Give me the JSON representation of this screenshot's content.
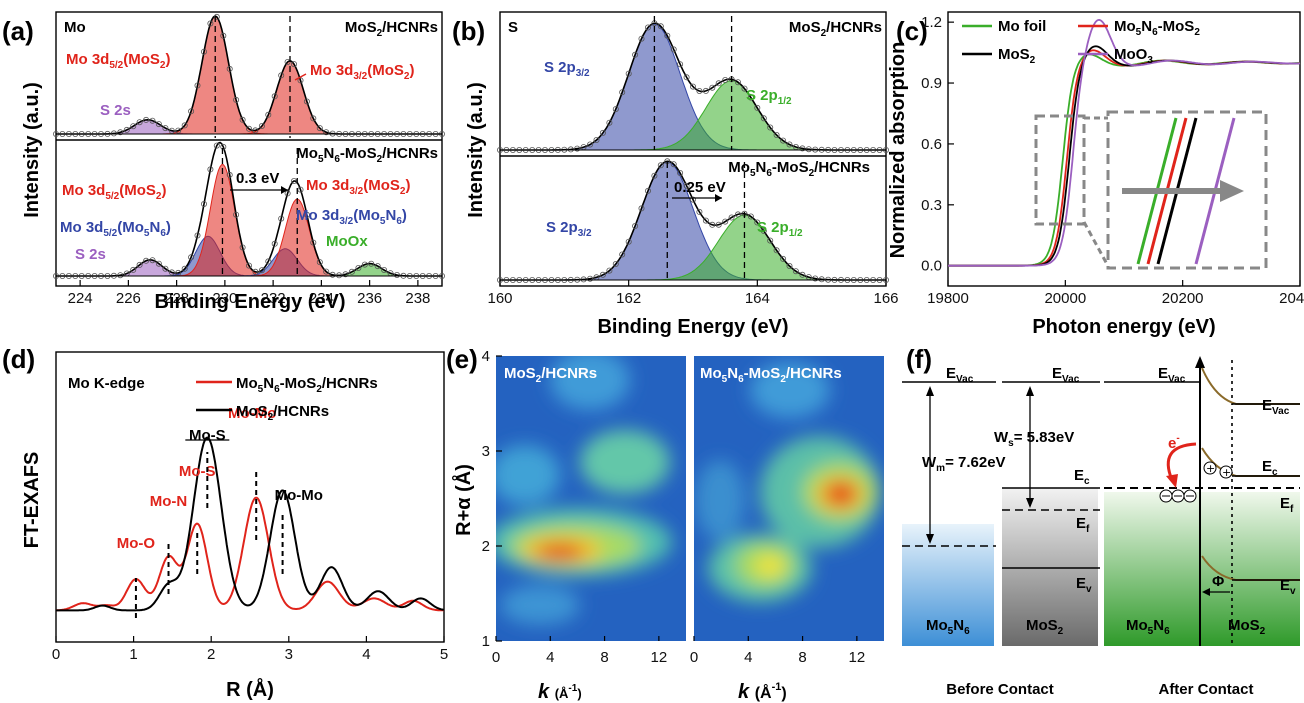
{
  "panel_labels": [
    "(a)",
    "(b)",
    "(c)",
    "(d)",
    "(e)",
    "(f)"
  ],
  "colors": {
    "red": "#e0241b",
    "blue": "#3346a6",
    "green": "#3aae2a",
    "purple": "#9b5fc0",
    "black": "#000000",
    "gray": "#888888"
  },
  "chart_data": [
    {
      "id": "a",
      "type": "line",
      "element_label": "Mo",
      "xlabel": "Binding Energy (eV)",
      "ylabel": "Intensity (a.u.)",
      "xlim": [
        223,
        239
      ],
      "xticks": [
        224,
        226,
        228,
        230,
        232,
        234,
        236,
        238
      ],
      "top": {
        "sample": "MoS2/HCNRs",
        "peaks": [
          {
            "label": "S 2s",
            "center": 226.8,
            "color": "#9b5fc0"
          },
          {
            "label": "Mo 3d5/2(MoS2)",
            "center": 229.6,
            "color": "#e0241b"
          },
          {
            "label": "Mo 3d3/2(MoS2)",
            "center": 232.7,
            "color": "#e0241b"
          }
        ]
      },
      "bottom": {
        "sample": "Mo5N6-MoS2/HCNRs",
        "shift": "0.3 eV",
        "peaks": [
          {
            "label": "S 2s",
            "center": 226.9,
            "color": "#9b5fc0"
          },
          {
            "label": "Mo 3d5/2(Mo5N6)",
            "center": 229.3,
            "color": "#3346a6"
          },
          {
            "label": "Mo 3d5/2(MoS2)",
            "center": 229.9,
            "color": "#e0241b"
          },
          {
            "label": "Mo 3d3/2(Mo5N6)",
            "center": 232.5,
            "color": "#3346a6"
          },
          {
            "label": "Mo 3d3/2(MoS2)",
            "center": 233.0,
            "color": "#e0241b"
          },
          {
            "label": "MoOx",
            "center": 236.0,
            "color": "#3aae2a"
          }
        ]
      }
    },
    {
      "id": "b",
      "type": "line",
      "element_label": "S",
      "xlabel": "Binding Energy (eV)",
      "ylabel": "Intensity (a.u.)",
      "xlim": [
        160,
        166
      ],
      "xticks": [
        160,
        162,
        164,
        166
      ],
      "top": {
        "sample": "MoS2/HCNRs",
        "peaks": [
          {
            "label": "S 2p3/2",
            "center": 162.4,
            "color": "#3346a6"
          },
          {
            "label": "S 2p1/2",
            "center": 163.6,
            "color": "#3aae2a"
          }
        ]
      },
      "bottom": {
        "sample": "Mo5N6-MoS2/HCNRs",
        "shift": "0.25 eV",
        "peaks": [
          {
            "label": "S 2p3/2",
            "center": 162.6,
            "color": "#3346a6"
          },
          {
            "label": "S 2p1/2",
            "center": 163.8,
            "color": "#3aae2a"
          }
        ]
      }
    },
    {
      "id": "c",
      "type": "line",
      "xlabel": "Photon energy (eV)",
      "ylabel": "Normalized absorption",
      "xlim": [
        19800,
        20400
      ],
      "ylim": [
        -0.1,
        1.25
      ],
      "xticks": [
        19800,
        20000,
        20200,
        20400
      ],
      "yticks": [
        0.0,
        0.3,
        0.6,
        0.9,
        1.2
      ],
      "series": [
        {
          "name": "Mo foil",
          "color": "#3aae2a",
          "edge": 19995
        },
        {
          "name": "Mo5N6-MoS2",
          "color": "#e0241b",
          "edge": 20002
        },
        {
          "name": "MoS2",
          "color": "#000000",
          "edge": 20006
        },
        {
          "name": "MoO3",
          "color": "#9b5fc0",
          "edge": 20012
        }
      ]
    },
    {
      "id": "d",
      "type": "line",
      "edge_label": "Mo K-edge",
      "xlabel": "R (Å)",
      "ylabel": "FT-EXAFS",
      "xlim": [
        0,
        5
      ],
      "xticks": [
        0,
        1,
        2,
        3,
        4,
        5
      ],
      "series": [
        {
          "name": "Mo5N6-MoS2/HCNRs",
          "color": "#e0241b"
        },
        {
          "name": "MoS2/HCNRs",
          "color": "#000000"
        }
      ],
      "annotations": [
        {
          "text": "Mo-O",
          "x": 1.03,
          "color": "#e0241b"
        },
        {
          "text": "Mo-N",
          "x": 1.45,
          "color": "#e0241b"
        },
        {
          "text": "Mo-S",
          "x": 1.82,
          "color": "#e0241b"
        },
        {
          "text": "Mo-S",
          "x": 1.95,
          "color": "#000000"
        },
        {
          "text": "Mo-Mo",
          "x": 2.58,
          "color": "#e0241b"
        },
        {
          "text": "Mo-Mo",
          "x": 2.92,
          "color": "#000000"
        }
      ]
    },
    {
      "id": "e",
      "type": "heatmap",
      "xlabel": "k (Å-1)",
      "ylabel": "R+α (Å)",
      "xticks": [
        0,
        4,
        8,
        12
      ],
      "yticks": [
        1,
        2,
        3,
        4
      ],
      "maps": [
        {
          "title": "MoS2/HCNRs",
          "max": {
            "k": 6,
            "R": 1.9
          }
        },
        {
          "title": "Mo5N6-MoS2/HCNRs",
          "max": {
            "k": 9.8,
            "R": 2.55
          }
        }
      ]
    },
    {
      "id": "f",
      "type": "diagram",
      "labels": {
        "evac": "EVac",
        "ec": "Ec",
        "ef": "Ef",
        "ev": "Ev",
        "wm": "Wm= 7.62eV",
        "ws": "Ws= 5.83eV",
        "mo5n6": "Mo5N6",
        "mos2": "MoS2",
        "phi": "Φ",
        "electron": "e-",
        "before": "Before Contact",
        "after": "After Contact"
      }
    }
  ]
}
